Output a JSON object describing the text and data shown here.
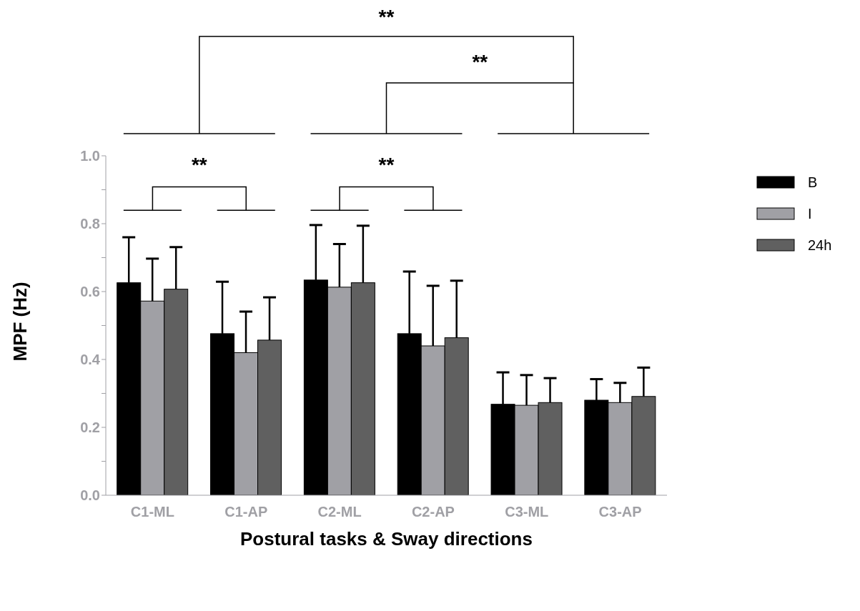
{
  "chart_data": {
    "type": "bar",
    "xlabel": "Postural tasks & Sway directions",
    "ylabel": "MPF (Hz)",
    "categories": [
      "C1-ML",
      "C1-AP",
      "C2-ML",
      "C2-AP",
      "C3-ML",
      "C3-AP"
    ],
    "series": [
      {
        "name": "B",
        "color": "#000000",
        "values": [
          0.626,
          0.476,
          0.634,
          0.476,
          0.268,
          0.28
        ],
        "errors": [
          [
            0.626,
            0.76
          ],
          [
            0.476,
            0.629
          ],
          [
            0.634,
            0.796
          ],
          [
            0.476,
            0.659
          ],
          [
            0.268,
            0.362
          ],
          [
            0.28,
            0.342
          ]
        ]
      },
      {
        "name": "I",
        "color": "#a0a0a5",
        "values": [
          0.572,
          0.42,
          0.613,
          0.44,
          0.265,
          0.273
        ],
        "errors": [
          [
            0.572,
            0.697
          ],
          [
            0.42,
            0.541
          ],
          [
            0.613,
            0.74
          ],
          [
            0.44,
            0.617
          ],
          [
            0.265,
            0.354
          ],
          [
            0.273,
            0.331
          ]
        ]
      },
      {
        "name": "24h",
        "color": "#606060",
        "values": [
          0.607,
          0.457,
          0.626,
          0.464,
          0.273,
          0.291
        ],
        "errors": [
          [
            0.607,
            0.731
          ],
          [
            0.457,
            0.583
          ],
          [
            0.626,
            0.794
          ],
          [
            0.464,
            0.632
          ],
          [
            0.273,
            0.345
          ],
          [
            0.291,
            0.376
          ]
        ]
      }
    ],
    "ylim": [
      0,
      1
    ],
    "yticks": [
      {
        "value": 0,
        "label": "0.0"
      },
      {
        "value": 0.1,
        "label": null
      },
      0.2,
      {
        "value": 0.3,
        "label": null
      },
      0.4,
      {
        "value": 0.5,
        "label": null
      },
      0.6,
      {
        "value": 0.7,
        "label": null
      },
      0.8,
      {
        "value": 0.9,
        "label": null
      },
      {
        "value": 1,
        "label": "1.0"
      }
    ],
    "legend": "top right",
    "annotations": [
      "**",
      "**",
      "**",
      "**"
    ]
  }
}
